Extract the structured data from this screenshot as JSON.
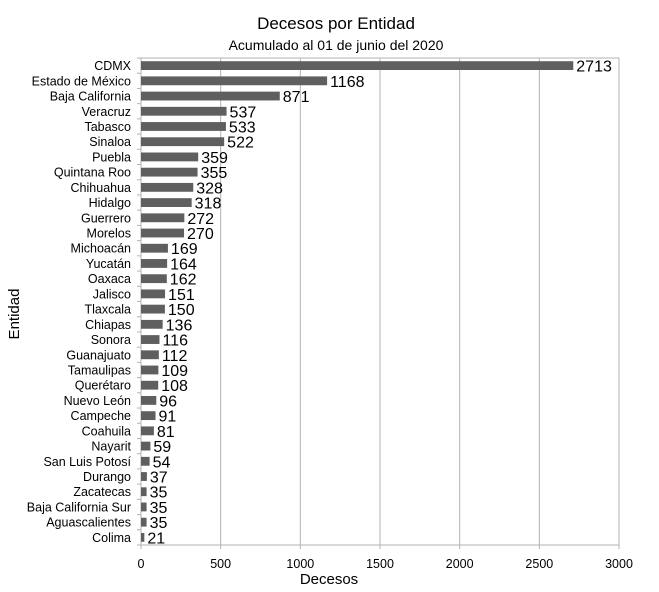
{
  "chart_data": {
    "type": "bar",
    "orientation": "horizontal",
    "title": "Decesos por Entidad",
    "subtitle": "Acumulado al 01 de junio del 2020",
    "xlabel": "Decesos",
    "ylabel": "Entidad",
    "xlim": [
      0,
      3000
    ],
    "xticks": [
      "0",
      "500",
      "1000",
      "1500",
      "2000",
      "2500",
      "3000"
    ],
    "grid": true,
    "bar_color": "#5f5f5f",
    "grid_color": "#b3b3b3",
    "categories": [
      "CDMX",
      "Estado de México",
      "Baja California",
      "Veracruz",
      "Tabasco",
      "Sinaloa",
      "Puebla",
      "Quintana Roo",
      "Chihuahua",
      "Hidalgo",
      "Guerrero",
      "Morelos",
      "Michoacán",
      "Yucatán",
      "Oaxaca",
      "Jalisco",
      "Tlaxcala",
      "Chiapas",
      "Sonora",
      "Guanajuato",
      "Tamaulipas",
      "Querétaro",
      "Nuevo León",
      "Campeche",
      "Coahuila",
      "Nayarit",
      "San Luis Potosí",
      "Durango",
      "Zacatecas",
      "Baja California Sur",
      "Aguascalientes",
      "Colima"
    ],
    "values": [
      2713,
      1168,
      871,
      537,
      533,
      522,
      359,
      355,
      328,
      318,
      272,
      270,
      169,
      164,
      162,
      151,
      150,
      136,
      116,
      112,
      109,
      108,
      96,
      91,
      81,
      59,
      54,
      37,
      35,
      35,
      35,
      21
    ]
  }
}
